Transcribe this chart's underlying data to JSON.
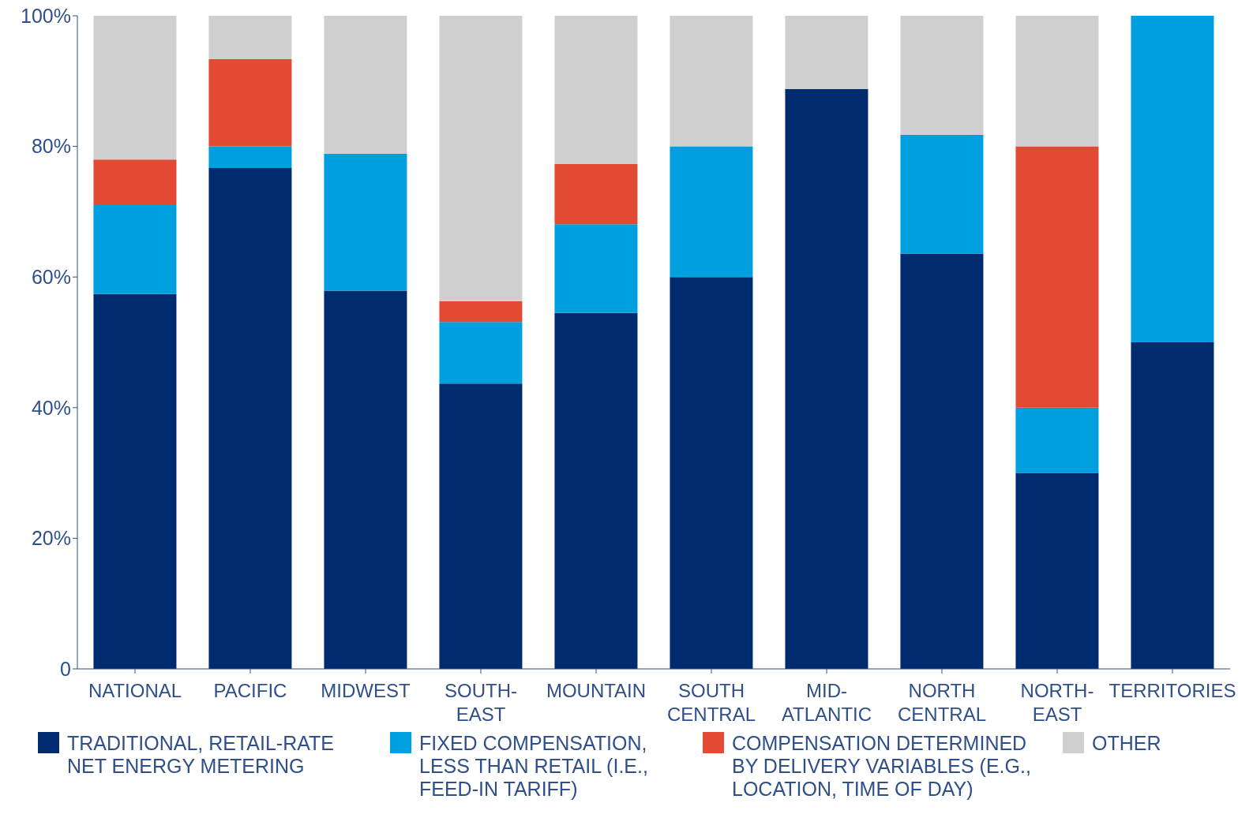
{
  "chart_data": {
    "type": "bar",
    "stacked": true,
    "legend": "bottom",
    "grid": false,
    "categories": [
      "NATIONAL",
      "PACIFIC",
      "MIDWEST",
      "SOUTH-EAST",
      "MOUNTAIN",
      "SOUTH CENTRAL",
      "MID-ATLANTIC",
      "NORTH CENTRAL",
      "NORTH-EAST",
      "TERRITORIES"
    ],
    "ylim": [
      0,
      100
    ],
    "yticks": [
      {
        "value": 0,
        "label": "0"
      },
      {
        "value": 20,
        "label": "20%"
      },
      {
        "value": 40,
        "label": "40%"
      },
      {
        "value": 60,
        "label": "60%"
      },
      {
        "value": 80,
        "label": "80%"
      },
      {
        "value": 100,
        "label": "100%"
      }
    ],
    "series": [
      {
        "name": "TRADITIONAL, RETAIL-RATE NET ENERGY METERING",
        "color": "#002b6e",
        "values": [
          57.4,
          76.7,
          57.9,
          43.7,
          54.5,
          60,
          88.8,
          63.6,
          30,
          50
        ]
      },
      {
        "name": "FIXED COMPENSATION, LESS THAN RETAIL (I.E., FEED-IN TARIFF)",
        "color": "#009fdf",
        "values": [
          13.6,
          3.3,
          21,
          9.4,
          13.6,
          20,
          0,
          18.2,
          10,
          50
        ]
      },
      {
        "name": "COMPENSATION DETERMINED BY DELIVERY VARIABLES (E.G., LOCATION, TIME OF DAY)",
        "color": "#e34a33",
        "values": [
          7,
          13.4,
          0,
          3.2,
          9.2,
          0,
          0,
          0,
          40,
          0
        ]
      },
      {
        "name": "OTHER",
        "color": "#d0cfcf",
        "values": [
          22,
          6.6,
          21.1,
          43.7,
          22.7,
          20,
          11.2,
          18.2,
          20,
          0
        ]
      }
    ]
  }
}
